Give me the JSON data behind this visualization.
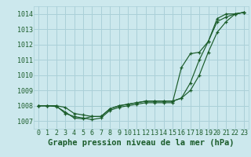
{
  "background_color": "#cce8ed",
  "grid_color": "#aad0d8",
  "line_color": "#1a5c2a",
  "xlabel": "Graphe pression niveau de la mer (hPa)",
  "xlabel_fontsize": 7.5,
  "tick_fontsize": 6.0,
  "xlim": [
    -0.5,
    23.5
  ],
  "ylim": [
    1006.5,
    1014.5
  ],
  "yticks": [
    1007,
    1008,
    1009,
    1010,
    1011,
    1012,
    1013,
    1014
  ],
  "xticks": [
    0,
    1,
    2,
    3,
    4,
    5,
    6,
    7,
    8,
    9,
    10,
    11,
    12,
    13,
    14,
    15,
    16,
    17,
    18,
    19,
    20,
    21,
    22,
    23
  ],
  "series1": [
    1008.0,
    1008.0,
    1008.0,
    1007.5,
    1007.3,
    1007.2,
    1007.1,
    1007.2,
    1007.7,
    1007.9,
    1008.0,
    1008.1,
    1008.2,
    1008.2,
    1008.2,
    1008.2,
    1010.5,
    1011.4,
    1011.5,
    1012.2,
    1013.7,
    1014.0,
    1014.0,
    1014.1
  ],
  "series2": [
    1008.0,
    1008.0,
    1008.0,
    1007.9,
    1007.5,
    1007.4,
    1007.3,
    1007.3,
    1007.8,
    1008.0,
    1008.1,
    1008.2,
    1008.3,
    1008.3,
    1008.3,
    1008.3,
    1008.5,
    1009.0,
    1010.0,
    1011.5,
    1012.8,
    1013.5,
    1014.0,
    1014.1
  ],
  "series3": [
    1008.0,
    1008.0,
    1007.95,
    1007.6,
    1007.2,
    1007.15,
    1007.3,
    1007.3,
    1007.8,
    1008.0,
    1008.1,
    1008.2,
    1008.3,
    1008.3,
    1008.3,
    1008.3,
    1008.5,
    1009.5,
    1011.0,
    1012.2,
    1013.5,
    1013.8,
    1014.0,
    1014.1
  ]
}
